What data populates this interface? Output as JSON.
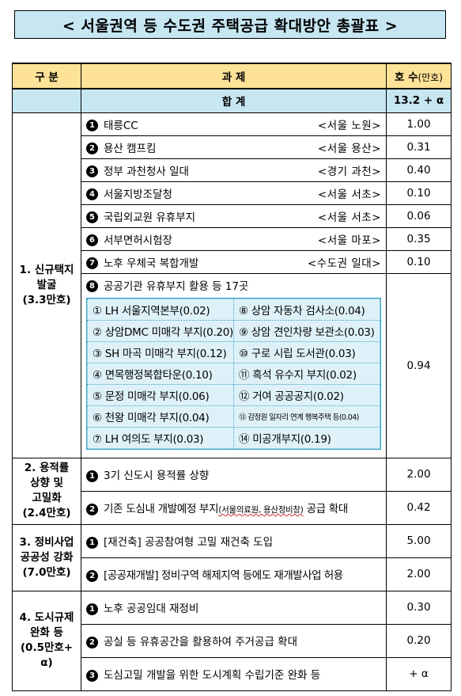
{
  "title": "< 서울권역 등 수도권 주택공급 확대방안 총괄표 >",
  "header": {
    "category": "구 분",
    "task": "과 제",
    "units": "호 수",
    "units_suffix": "(만호)"
  },
  "total": {
    "label": "합 계",
    "value": "13.2 + α"
  },
  "groups": [
    {
      "label": "1. 신규택지 발굴 (3.3만호)",
      "items": [
        {
          "num": "1",
          "name": "태릉CC",
          "loc": "<서울 노원>",
          "value": "1.00"
        },
        {
          "num": "2",
          "name": "용산 캠프킴",
          "loc": "<서울 용산>",
          "value": "0.31"
        },
        {
          "num": "3",
          "name": "정부 과천청사 일대",
          "loc": "<경기 과천>",
          "value": "0.40"
        },
        {
          "num": "4",
          "name": "서울지방조달청",
          "loc": "<서울 서초>",
          "value": "0.10"
        },
        {
          "num": "5",
          "name": "국립외교원 유휴부지",
          "loc": "<서울 서초>",
          "value": "0.06"
        },
        {
          "num": "6",
          "name": "서부면허시험장",
          "loc": "<서울 마포>",
          "value": "0.35"
        },
        {
          "num": "7",
          "name": "노후 우체국 복합개발",
          "loc": "<수도권 일대>",
          "value": "0.10"
        },
        {
          "num": "8",
          "name": "공공기관 유휴부지 활용 등 17곳",
          "loc": "",
          "value": "0.94"
        }
      ],
      "sub_items": [
        [
          "① LH 서울지역본부(0.02)",
          "⑧ 상암 자동차 검사소(0.04)"
        ],
        [
          "② 상암DMC 미매각 부지(0.20)",
          "⑨ 상암 견인차량 보관소(0.03)"
        ],
        [
          "③ SH 마곡 미매각 부지(0.12)",
          "⑩ 구로 시립 도서관(0.03)"
        ],
        [
          "④ 면목행정복합타운(0.10)",
          "⑪ 흑석 유수지 부지(0.02)"
        ],
        [
          "⑤ 문정 미매각 부지(0.06)",
          "⑫ 거여 공공공지(0.02)"
        ],
        [
          "⑥ 천왕 미매각 부지(0.04)",
          "⑬ 감정원 일자리 연계 행복주택 등(0.04)"
        ],
        [
          "⑦ LH 여의도 부지(0.03)",
          "⑭ 미공개부지(0.19)"
        ]
      ]
    },
    {
      "label": "2. 용적률 상향 및 고밀화 (2.4만호)",
      "items": [
        {
          "num": "1",
          "name": "3기 신도시 용적률 상향",
          "value": "2.00"
        },
        {
          "num": "2",
          "name_a": "기존 도심내 개발예정 부지",
          "name_small": "(서울의료원, 용산정비창)",
          "name_b": " 공급 확대",
          "value": "0.42"
        }
      ]
    },
    {
      "label": "3. 정비사업 공공성 강화 (7.0만호)",
      "items": [
        {
          "num": "1",
          "name": "[재건축] 공공참여형 고밀 재건축 도입",
          "value": "5.00"
        },
        {
          "num": "2",
          "name": "[공공재개발] 정비구역 해제지역 등에도 재개발사업 허용",
          "value": "2.00"
        }
      ]
    },
    {
      "label": "4. 도시규제 완화 등 (0.5만호+ α)",
      "items": [
        {
          "num": "1",
          "name": "노후 공공임대 재정비",
          "value": "0.30"
        },
        {
          "num": "2",
          "name": "공실 등 유휴공간을 활용하여 주거공급 확대",
          "value": "0.20"
        },
        {
          "num": "3",
          "name": "도심고밀 개발을 위한 도시계획 수립기준 완화 등",
          "value": "+ α"
        }
      ]
    }
  ]
}
